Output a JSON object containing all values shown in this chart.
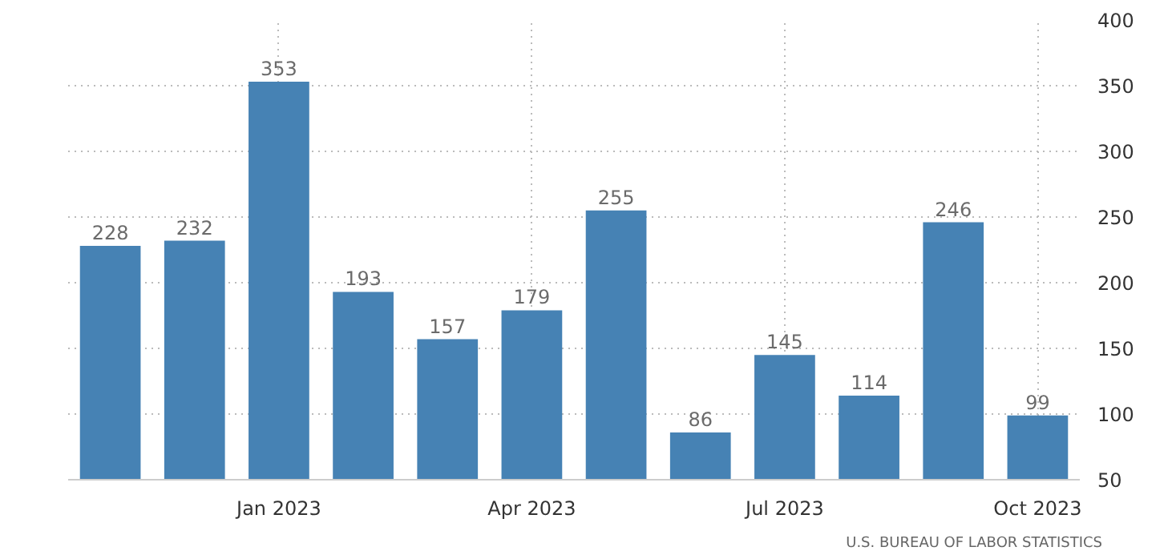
{
  "chart_data": {
    "type": "bar",
    "categories": [
      null,
      null,
      "Jan 2023",
      null,
      null,
      "Apr 2023",
      null,
      null,
      "Jul 2023",
      null,
      null,
      "Oct 2023"
    ],
    "values": [
      228,
      232,
      353,
      193,
      157,
      179,
      255,
      86,
      145,
      114,
      246,
      99
    ],
    "color": "#4682b4",
    "ylim": [
      50,
      400
    ],
    "yticks": [
      50,
      100,
      150,
      200,
      250,
      300,
      350,
      400
    ],
    "grid": true,
    "data_labels": true,
    "annotations": [
      "U.S. BUREAU OF LABOR STATISTICS"
    ]
  }
}
